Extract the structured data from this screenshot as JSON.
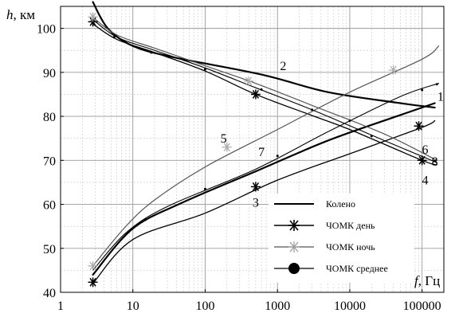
{
  "chart_data": {
    "type": "line",
    "title": "",
    "ylabel_var": "h",
    "ylabel_unit": ", км",
    "xlabel_var": "f",
    "xlabel_unit": ", Гц",
    "x_scale": "log",
    "xlim": [
      1,
      200000
    ],
    "ylim": [
      40,
      105
    ],
    "x_ticks": [
      {
        "value": 1,
        "label": "1"
      },
      {
        "value": 10,
        "label": "10"
      },
      {
        "value": 100,
        "label": "100"
      },
      {
        "value": 1000,
        "label": "1000"
      },
      {
        "value": 10000,
        "label": "10000"
      },
      {
        "value": 100000,
        "label": "100000"
      }
    ],
    "y_ticks": [
      {
        "value": 40,
        "label": "40"
      },
      {
        "value": 50,
        "label": "50"
      },
      {
        "value": 60,
        "label": "60"
      },
      {
        "value": 70,
        "label": "70"
      },
      {
        "value": 80,
        "label": "80"
      },
      {
        "value": 90,
        "label": "90"
      },
      {
        "value": 100,
        "label": "100"
      }
    ],
    "grid": true,
    "legend_position": "bottom-right",
    "legend": [
      {
        "label": "Колено",
        "marker": "none",
        "color": "#000000"
      },
      {
        "label": "ЧОМК день",
        "marker": "star",
        "color": "#000000"
      },
      {
        "label": "ЧОМК ночь",
        "marker": "star",
        "color": "#999999"
      },
      {
        "label": "ЧОМК среднее",
        "marker": "dot",
        "color": "#000000"
      }
    ],
    "series": [
      {
        "id": "knee-upper",
        "points": [
          [
            2.8,
            106
          ],
          [
            4.5,
            100
          ],
          [
            10,
            96
          ],
          [
            35,
            93.5
          ],
          [
            600,
            89.5
          ],
          [
            5000,
            85.5
          ],
          [
            50000,
            83
          ],
          [
            150000,
            82
          ]
        ],
        "stroke": "#000000",
        "width": 2.2
      },
      {
        "id": "knee-lower",
        "points": [
          [
            2.8,
            44
          ],
          [
            10,
            54.5
          ],
          [
            50,
            60.5
          ],
          [
            500,
            67.5
          ],
          [
            5000,
            74.5
          ],
          [
            50000,
            80.3
          ],
          [
            150000,
            83
          ]
        ],
        "stroke": "#000000",
        "width": 2.2
      },
      {
        "id": "day-upper",
        "points": [
          [
            2.8,
            101
          ],
          [
            6,
            97.5
          ],
          [
            20,
            94.5
          ],
          [
            100,
            90.3
          ],
          [
            500,
            85
          ],
          [
            3000,
            80.2
          ],
          [
            10000,
            77
          ],
          [
            100000,
            70
          ],
          [
            160000,
            69
          ]
        ],
        "stroke": "#000000",
        "width": 1.3,
        "markers": [
          [
            2.8,
            101.5
          ],
          [
            500,
            85
          ],
          [
            100000,
            70
          ]
        ],
        "marker": "star-black"
      },
      {
        "id": "day-lower",
        "points": [
          [
            2.8,
            42
          ],
          [
            10,
            52
          ],
          [
            100,
            58
          ],
          [
            1000,
            65.5
          ],
          [
            10000,
            71.5
          ],
          [
            100000,
            77.5
          ],
          [
            150000,
            79
          ]
        ],
        "stroke": "#000000",
        "width": 1.3,
        "markers": [
          [
            2.8,
            42.3
          ],
          [
            500,
            64
          ],
          [
            90000,
            77.8
          ]
        ],
        "marker": "star-black"
      },
      {
        "id": "night-upper",
        "points": [
          [
            2.8,
            102.5
          ],
          [
            6,
            98.5
          ],
          [
            20,
            95.5
          ],
          [
            100,
            91.5
          ],
          [
            500,
            87.5
          ],
          [
            3000,
            82.5
          ],
          [
            30000,
            76
          ],
          [
            160000,
            70
          ]
        ],
        "stroke": "#555555",
        "width": 1.2,
        "markers": [
          [
            2.8,
            102.6
          ],
          [
            400,
            88
          ],
          [
            40000,
            90.5
          ]
        ],
        "marker": "star-gray"
      },
      {
        "id": "night-lower",
        "points": [
          [
            2.8,
            46
          ],
          [
            8,
            55
          ],
          [
            20,
            61
          ],
          [
            100,
            68.5
          ],
          [
            1000,
            77
          ],
          [
            10000,
            85.5
          ],
          [
            100000,
            93
          ],
          [
            170000,
            96
          ]
        ],
        "stroke": "#555555",
        "width": 1.2,
        "markers": [
          [
            2.8,
            46
          ],
          [
            200,
            73
          ]
        ],
        "marker": "star-gray"
      },
      {
        "id": "mean-upper",
        "points": [
          [
            2.8,
            102
          ],
          [
            6,
            98
          ],
          [
            20,
            95
          ],
          [
            100,
            91
          ],
          [
            500,
            86.5
          ],
          [
            3000,
            81.5
          ],
          [
            30000,
            74.5
          ],
          [
            160000,
            69.5
          ]
        ],
        "stroke": "#000000",
        "width": 1.1,
        "markers": [
          [
            5.5,
            98
          ],
          [
            18,
            94.5
          ],
          [
            100,
            90.7
          ],
          [
            600,
            86.1
          ],
          [
            3000,
            81.5
          ],
          [
            20000,
            75.5
          ],
          [
            150000,
            69.8
          ]
        ],
        "marker": "dot"
      },
      {
        "id": "mean-lower",
        "points": [
          [
            2.8,
            45
          ],
          [
            8,
            53.5
          ],
          [
            30,
            59.5
          ],
          [
            500,
            68
          ],
          [
            5000,
            76.5
          ],
          [
            50000,
            84.5
          ],
          [
            170000,
            87.5
          ]
        ],
        "stroke": "#000000",
        "width": 1.1,
        "markers": [
          [
            15,
            56.5
          ],
          [
            100,
            63.5
          ],
          [
            1000,
            71
          ],
          [
            10000,
            79
          ],
          [
            100000,
            86
          ],
          [
            160000,
            87.3
          ]
        ],
        "marker": "dot"
      }
    ],
    "curve_labels": [
      {
        "text": "1",
        "x": 180000,
        "y": 83.5
      },
      {
        "text": "2",
        "x": 1200,
        "y": 90.5
      },
      {
        "text": "3",
        "x": 500,
        "y": 59.5
      },
      {
        "text": "4",
        "x": 110000,
        "y": 64.5
      },
      {
        "text": "5",
        "x": 180,
        "y": 74
      },
      {
        "text": "6",
        "x": 110000,
        "y": 71.5
      },
      {
        "text": "7",
        "x": 600,
        "y": 71
      },
      {
        "text": "8",
        "x": 150000,
        "y": 68.8
      }
    ]
  }
}
